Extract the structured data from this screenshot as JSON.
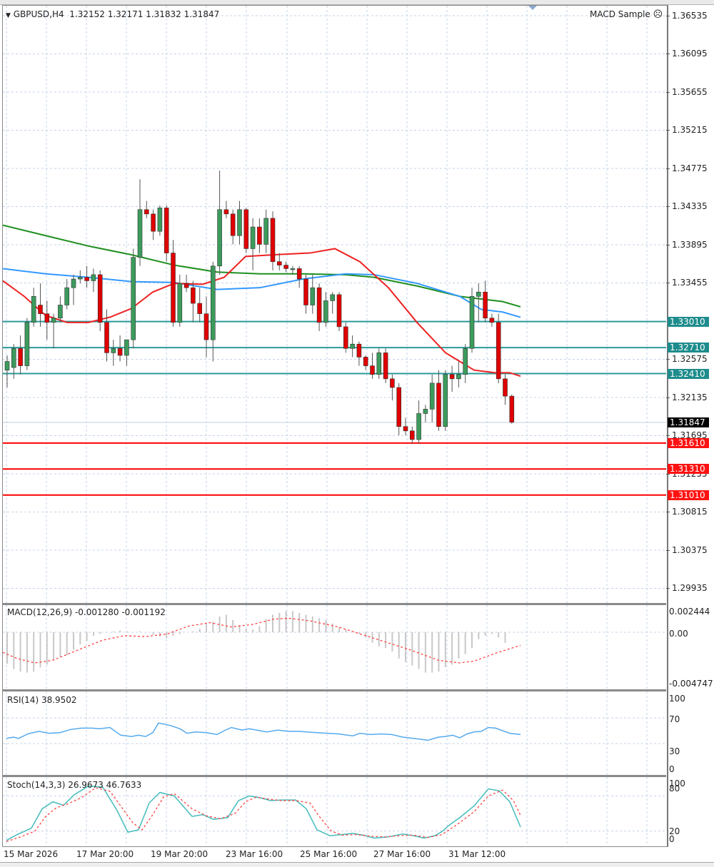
{
  "window": {
    "symbol_header": "GBPUSD,H4",
    "ohlc": "1.32152 1.32171 1.31832 1.31847",
    "expert_label": "MACD Sample",
    "expert_icon": "sad-face-icon"
  },
  "price_scale": {
    "labels": [
      "1.36535",
      "1.36095",
      "1.35655",
      "1.35215",
      "1.34775",
      "1.34335",
      "1.33895",
      "1.33455",
      "1.32575",
      "1.32135",
      "1.31695",
      "1.31255",
      "1.30815",
      "1.30375",
      "1.29935"
    ],
    "current_price": "1.31847",
    "current_price_color": "#000000"
  },
  "horizontal_lines": [
    {
      "price": "1.33010",
      "color": "#2a9a9a",
      "type": "resistance"
    },
    {
      "price": "1.32710",
      "color": "#2a9a9a",
      "type": "resistance"
    },
    {
      "price": "1.32410",
      "color": "#2a9a9a",
      "type": "resistance"
    },
    {
      "price": "1.31610",
      "color": "#ff0000",
      "type": "support"
    },
    {
      "price": "1.31310",
      "color": "#ff0000",
      "type": "support"
    },
    {
      "price": "1.31010",
      "color": "#ff0000",
      "type": "support"
    }
  ],
  "macd": {
    "label": "MACD(12,26,9) -0.001280 -0.001192",
    "scale": [
      "0.002444",
      "0.00",
      "-0.004747"
    ]
  },
  "rsi": {
    "label": "RSI(14) 38.9502",
    "scale": [
      "100",
      "70",
      "30",
      "0"
    ]
  },
  "stoch": {
    "label": "Stoch(14,3,3) 26.9673 46.7633",
    "scale": [
      "100",
      "80",
      "20",
      "0"
    ]
  },
  "time_axis": [
    "15 Mar 2026",
    "17 Mar 20:00",
    "19 Mar 20:00",
    "23 Mar 16:00",
    "25 Mar 16:00",
    "27 Mar 16:00",
    "31 Mar 12:00"
  ],
  "colors": {
    "bull": "#3c9b5c",
    "bear": "#e00000",
    "ma_fast": "#ee2222",
    "ma_mid": "#3399ff",
    "ma_slow": "#1f8f1f",
    "rsi": "#55aaee",
    "stoch_main": "#44bbbb",
    "stoch_signal": "#ff4444",
    "grid": "#c5d3e8"
  },
  "chart_data": {
    "type": "candlestick",
    "title": "GBPUSD,H4",
    "ylim": [
      1.2975,
      1.3665
    ],
    "x_labels": [
      "15 Mar 2026",
      "17 Mar 20:00",
      "19 Mar 20:00",
      "23 Mar 16:00",
      "25 Mar 16:00",
      "27 Mar 16:00",
      "31 Mar 12:00"
    ],
    "candles": [
      [
        1.3245,
        1.3262,
        1.3225,
        1.3255
      ],
      [
        1.3248,
        1.3275,
        1.3235,
        1.327
      ],
      [
        1.327,
        1.3285,
        1.324,
        1.325
      ],
      [
        1.325,
        1.3305,
        1.3245,
        1.33
      ],
      [
        1.33,
        1.334,
        1.3295,
        1.333
      ],
      [
        1.332,
        1.3345,
        1.3295,
        1.331
      ],
      [
        1.331,
        1.3325,
        1.328,
        1.33
      ],
      [
        1.33,
        1.331,
        1.327,
        1.3305
      ],
      [
        1.3305,
        1.333,
        1.33,
        1.332
      ],
      [
        1.332,
        1.335,
        1.3315,
        1.334
      ],
      [
        1.334,
        1.3355,
        1.332,
        1.335
      ],
      [
        1.335,
        1.336,
        1.3345,
        1.3352
      ],
      [
        1.3352,
        1.3365,
        1.334,
        1.3348
      ],
      [
        1.3348,
        1.3362,
        1.3335,
        1.3355
      ],
      [
        1.3355,
        1.336,
        1.329,
        1.33
      ],
      [
        1.33,
        1.3315,
        1.3255,
        1.3265
      ],
      [
        1.3265,
        1.328,
        1.325,
        1.327
      ],
      [
        1.327,
        1.3285,
        1.3255,
        1.3262
      ],
      [
        1.3262,
        1.328,
        1.325,
        1.328
      ],
      [
        1.328,
        1.3385,
        1.327,
        1.3375
      ],
      [
        1.3375,
        1.3465,
        1.3365,
        1.343
      ],
      [
        1.343,
        1.344,
        1.342,
        1.3425
      ],
      [
        1.3425,
        1.343,
        1.3395,
        1.3405
      ],
      [
        1.3405,
        1.3435,
        1.34,
        1.3432
      ],
      [
        1.3432,
        1.3435,
        1.337,
        1.338
      ],
      [
        1.338,
        1.3395,
        1.3295,
        1.33
      ],
      [
        1.33,
        1.3355,
        1.3295,
        1.3345
      ],
      [
        1.3345,
        1.3355,
        1.3335,
        1.334
      ],
      [
        1.334,
        1.3348,
        1.33,
        1.3322
      ],
      [
        1.3322,
        1.334,
        1.33,
        1.331
      ],
      [
        1.331,
        1.333,
        1.326,
        1.328
      ],
      [
        1.328,
        1.337,
        1.3255,
        1.3365
      ],
      [
        1.3365,
        1.3475,
        1.3355,
        1.343
      ],
      [
        1.343,
        1.344,
        1.342,
        1.3425
      ],
      [
        1.3425,
        1.343,
        1.339,
        1.34
      ],
      [
        1.34,
        1.344,
        1.339,
        1.343
      ],
      [
        1.343,
        1.3432,
        1.338,
        1.3385
      ],
      [
        1.3385,
        1.342,
        1.336,
        1.341
      ],
      [
        1.341,
        1.342,
        1.338,
        1.339
      ],
      [
        1.339,
        1.343,
        1.338,
        1.342
      ],
      [
        1.342,
        1.3428,
        1.336,
        1.337
      ],
      [
        1.337,
        1.338,
        1.336,
        1.3366
      ],
      [
        1.3366,
        1.337,
        1.3358,
        1.3362
      ],
      [
        1.3362,
        1.3365,
        1.3355,
        1.3362
      ],
      [
        1.3362,
        1.3365,
        1.334,
        1.335
      ],
      [
        1.335,
        1.3355,
        1.331,
        1.332
      ],
      [
        1.332,
        1.3355,
        1.331,
        1.334
      ],
      [
        1.334,
        1.3345,
        1.329,
        1.33
      ],
      [
        1.33,
        1.3335,
        1.3295,
        1.3325
      ],
      [
        1.3325,
        1.3335,
        1.331,
        1.3332
      ],
      [
        1.3332,
        1.3335,
        1.329,
        1.3295
      ],
      [
        1.3295,
        1.33,
        1.3265,
        1.327
      ],
      [
        1.327,
        1.3285,
        1.326,
        1.3275
      ],
      [
        1.3275,
        1.3278,
        1.325,
        1.326
      ],
      [
        1.326,
        1.3262,
        1.3245,
        1.325
      ],
      [
        1.325,
        1.3265,
        1.3235,
        1.324
      ],
      [
        1.324,
        1.327,
        1.3235,
        1.3265
      ],
      [
        1.3265,
        1.327,
        1.323,
        1.3235
      ],
      [
        1.3235,
        1.324,
        1.321,
        1.3225
      ],
      [
        1.3225,
        1.323,
        1.317,
        1.318
      ],
      [
        1.318,
        1.319,
        1.317,
        1.3175
      ],
      [
        1.3175,
        1.318,
        1.316,
        1.3165
      ],
      [
        1.3165,
        1.321,
        1.316,
        1.3195
      ],
      [
        1.3195,
        1.3205,
        1.3185,
        1.32
      ],
      [
        1.32,
        1.324,
        1.3185,
        1.323
      ],
      [
        1.323,
        1.3245,
        1.3175,
        1.318
      ],
      [
        1.318,
        1.3245,
        1.3175,
        1.324
      ],
      [
        1.324,
        1.325,
        1.322,
        1.3235
      ],
      [
        1.3235,
        1.3255,
        1.3225,
        1.324
      ],
      [
        1.324,
        1.3275,
        1.323,
        1.327
      ],
      [
        1.327,
        1.334,
        1.3265,
        1.333
      ],
      [
        1.333,
        1.3345,
        1.33,
        1.3335
      ],
      [
        1.3335,
        1.3348,
        1.33,
        1.3305
      ],
      [
        1.3305,
        1.331,
        1.3295,
        1.33
      ],
      [
        1.33,
        1.331,
        1.323,
        1.3235
      ],
      [
        1.3235,
        1.324,
        1.3205,
        1.3215
      ],
      [
        1.3215,
        1.3217,
        1.3183,
        1.3185
      ]
    ],
    "current_price": 1.31847,
    "moving_averages": [
      {
        "name": "MA fast (red)",
        "approx_end": 1.324
      },
      {
        "name": "MA mid (blue)",
        "approx_end": 1.3305
      },
      {
        "name": "MA slow (green)",
        "approx_end": 1.3318
      }
    ],
    "indicators": {
      "macd": {
        "main": -0.00128,
        "signal": -0.001192,
        "range": [
          -0.004747,
          0.002444
        ]
      },
      "rsi": {
        "value": 38.9502,
        "levels": [
          30,
          70
        ]
      },
      "stoch": {
        "k": 26.9673,
        "d": 46.7633,
        "levels": [
          20,
          80
        ]
      }
    }
  }
}
